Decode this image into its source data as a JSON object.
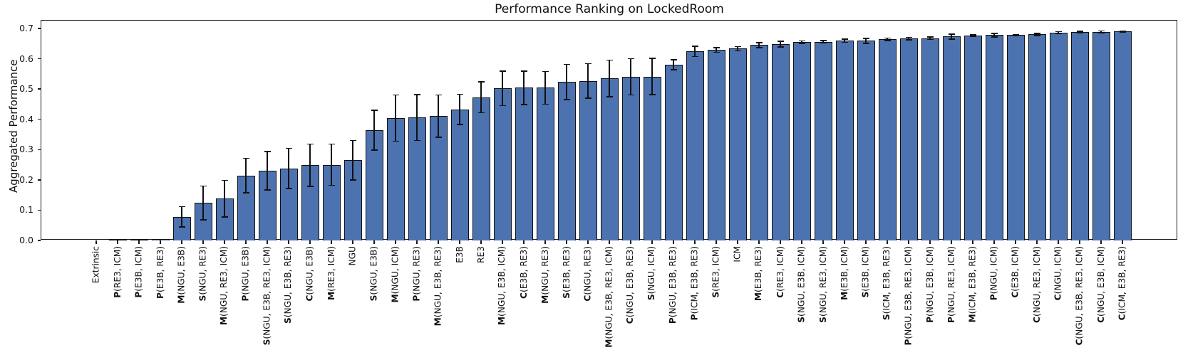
{
  "title": "Performance Ranking on LockedRoom",
  "chart_data": {
    "type": "bar",
    "title": "Performance Ranking on LockedRoom",
    "xlabel": "",
    "ylabel": "Aggregated Performance",
    "ylim": [
      0,
      0.728
    ],
    "yticks": [
      "0.0",
      "0.1",
      "0.2",
      "0.3",
      "0.4",
      "0.5",
      "0.6",
      "0.7"
    ],
    "grid": false,
    "legend": null,
    "x_tick_rotation": 90,
    "bar_color": "#4C72B0",
    "bar_edge_color": "#111111",
    "error_bar_color": "#111111",
    "categories": [
      "Extrinsic",
      "P(RE3, ICM)",
      "P(E3B, ICM)",
      "P(E3B, RE3)",
      "M(NGU, E3B)",
      "S(NGU, RE3)",
      "M(NGU, RE3, ICM)",
      "P(NGU, E3B)",
      "S(NGU, E3B, RE3, ICM)",
      "S(NGU, E3B, RE3)",
      "C(NGU, E3B)",
      "M(RE3, ICM)",
      "NGU",
      "S(NGU, E3B)",
      "M(NGU, ICM)",
      "P(NGU, RE3)",
      "M(NGU, E3B, RE3)",
      "E3B",
      "RE3",
      "M(NGU, E3B, ICM)",
      "C(E3B, RE3)",
      "M(NGU, RE3)",
      "S(E3B, RE3)",
      "C(NGU, RE3)",
      "M(NGU, E3B, RE3, ICM)",
      "C(NGU, E3B, RE3)",
      "S(NGU, ICM)",
      "P(NGU, E3B, RE3)",
      "P(ICM, E3B, RE3)",
      "S(RE3, ICM)",
      "ICM",
      "M(E3B, RE3)",
      "C(RE3, ICM)",
      "S(NGU, E3B, ICM)",
      "S(NGU, RE3, ICM)",
      "M(E3B, ICM)",
      "S(E3B, ICM)",
      "S(ICM, E3B, RE3)",
      "P(NGU, E3B, RE3, ICM)",
      "P(NGU, E3B, ICM)",
      "P(NGU, RE3, ICM)",
      "M(ICM, E3B, RE3)",
      "P(NGU, ICM)",
      "C(E3B, ICM)",
      "C(NGU, RE3, ICM)",
      "C(NGU, ICM)",
      "C(NGU, E3B, RE3, ICM)",
      "C(NGU, E3B, ICM)",
      "C(ICM, E3B, RE3)"
    ],
    "values": [
      0.0,
      0.002,
      0.003,
      0.004,
      0.078,
      0.124,
      0.138,
      0.214,
      0.23,
      0.238,
      0.248,
      0.25,
      0.265,
      0.364,
      0.404,
      0.406,
      0.41,
      0.433,
      0.473,
      0.502,
      0.504,
      0.504,
      0.523,
      0.527,
      0.535,
      0.54,
      0.541,
      0.58,
      0.624,
      0.629,
      0.633,
      0.645,
      0.648,
      0.655,
      0.656,
      0.659,
      0.659,
      0.664,
      0.666,
      0.668,
      0.673,
      0.676,
      0.678,
      0.678,
      0.68,
      0.686,
      0.688,
      0.689,
      0.69
    ],
    "errors": [
      0.0,
      0.0,
      0.0,
      0.0,
      0.034,
      0.056,
      0.06,
      0.057,
      0.063,
      0.066,
      0.07,
      0.068,
      0.065,
      0.066,
      0.076,
      0.076,
      0.07,
      0.05,
      0.051,
      0.057,
      0.055,
      0.054,
      0.058,
      0.057,
      0.06,
      0.06,
      0.06,
      0.017,
      0.017,
      0.008,
      0.007,
      0.008,
      0.009,
      0.004,
      0.004,
      0.005,
      0.008,
      0.004,
      0.004,
      0.004,
      0.008,
      0.003,
      0.006,
      0.002,
      0.004,
      0.003,
      0.003,
      0.003,
      0.002
    ]
  }
}
